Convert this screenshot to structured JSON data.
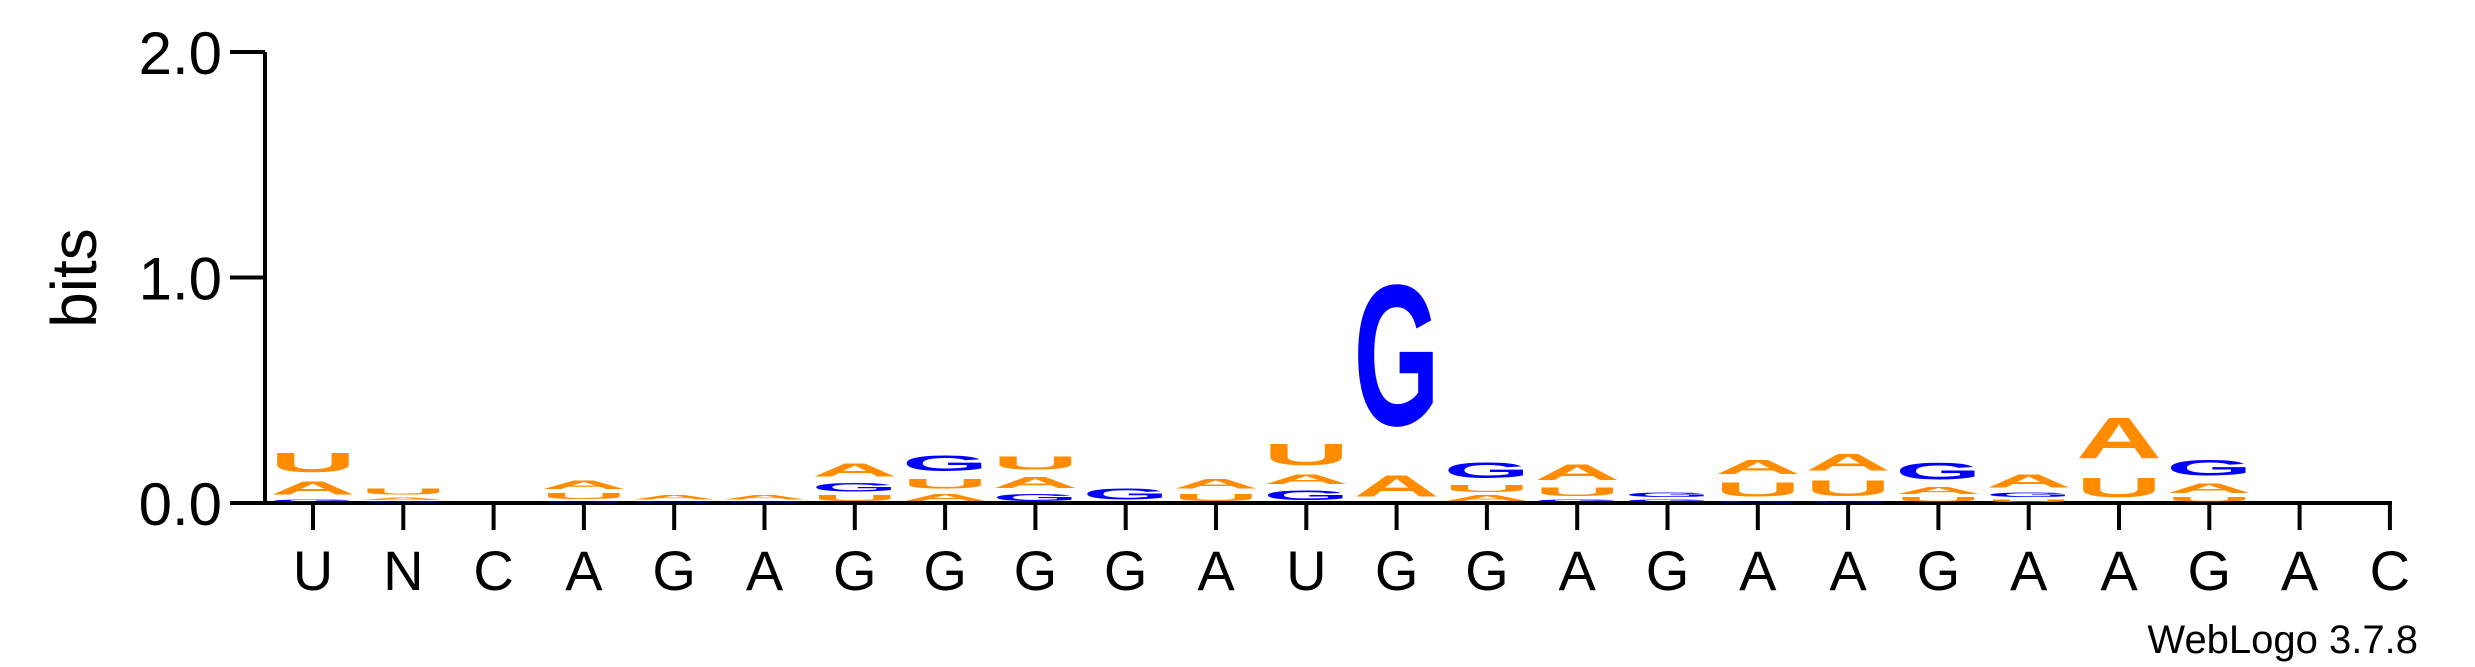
{
  "chart_data": {
    "type": "sequence-logo",
    "ylabel": "bits",
    "ylim": [
      0,
      2.0
    ],
    "yticks": [
      "0.0",
      "1.0",
      "2.0"
    ],
    "positions": [
      "U",
      "N",
      "C",
      "A",
      "G",
      "A",
      "G",
      "G",
      "G",
      "G",
      "A",
      "U",
      "G",
      "G",
      "A",
      "G",
      "A",
      "A",
      "G",
      "A",
      "A",
      "G",
      "A",
      "C"
    ],
    "colors": {
      "A": "#FF8C00",
      "U": "#FF8C00",
      "G": "#0000FF",
      "C": "#0000FF"
    },
    "stacks": [
      [
        {
          "letter": "G",
          "value": 0.02
        },
        {
          "letter": "A",
          "value": 0.09
        },
        {
          "letter": "U",
          "value": 0.14
        }
      ],
      [
        {
          "letter": "G",
          "value": 0.01
        },
        {
          "letter": "A",
          "value": 0.02
        },
        {
          "letter": "U",
          "value": 0.04
        }
      ],
      [],
      [
        {
          "letter": "G",
          "value": 0.01
        },
        {
          "letter": "U",
          "value": 0.04
        },
        {
          "letter": "A",
          "value": 0.06
        }
      ],
      [
        {
          "letter": "G",
          "value": 0.01
        },
        {
          "letter": "A",
          "value": 0.03
        }
      ],
      [
        {
          "letter": "G",
          "value": 0.01
        },
        {
          "letter": "A",
          "value": 0.03
        }
      ],
      [
        {
          "letter": "U",
          "value": 0.04
        },
        {
          "letter": "G",
          "value": 0.06
        },
        {
          "letter": "A",
          "value": 0.09
        }
      ],
      [
        {
          "letter": "A",
          "value": 0.05
        },
        {
          "letter": "U",
          "value": 0.07
        },
        {
          "letter": "G",
          "value": 0.11
        }
      ],
      [
        {
          "letter": "G",
          "value": 0.05
        },
        {
          "letter": "A",
          "value": 0.08
        },
        {
          "letter": "U",
          "value": 0.09
        }
      ],
      [
        {
          "letter": "G",
          "value": 0.08
        }
      ],
      [
        {
          "letter": "U",
          "value": 0.05
        },
        {
          "letter": "A",
          "value": 0.07
        }
      ],
      [
        {
          "letter": "G",
          "value": 0.07
        },
        {
          "letter": "A",
          "value": 0.07
        },
        {
          "letter": "U",
          "value": 0.15
        }
      ],
      [
        {
          "letter": "A",
          "value": 0.15
        },
        {
          "letter": "G",
          "value": 1.0
        }
      ],
      [
        {
          "letter": "A",
          "value": 0.04
        },
        {
          "letter": "U",
          "value": 0.05
        },
        {
          "letter": "G",
          "value": 0.11
        }
      ],
      [
        {
          "letter": "G",
          "value": 0.02
        },
        {
          "letter": "U",
          "value": 0.06
        },
        {
          "letter": "A",
          "value": 0.11
        }
      ],
      [
        {
          "letter": "G",
          "value": 0.02
        },
        {
          "letter": "G",
          "value": 0.03
        }
      ],
      [
        {
          "letter": "G",
          "value": 0.01
        },
        {
          "letter": "U",
          "value": 0.1
        },
        {
          "letter": "A",
          "value": 0.1
        }
      ],
      [
        {
          "letter": "G",
          "value": 0.01
        },
        {
          "letter": "U",
          "value": 0.11
        },
        {
          "letter": "A",
          "value": 0.12
        }
      ],
      [
        {
          "letter": "U",
          "value": 0.03
        },
        {
          "letter": "A",
          "value": 0.05
        },
        {
          "letter": "G",
          "value": 0.12
        }
      ],
      [
        {
          "letter": "U",
          "value": 0.02
        },
        {
          "letter": "G",
          "value": 0.03
        },
        {
          "letter": "A",
          "value": 0.09
        }
      ],
      [
        {
          "letter": "U",
          "value": 0.14
        },
        {
          "letter": "A",
          "value": 0.29
        }
      ],
      [
        {
          "letter": "U",
          "value": 0.03
        },
        {
          "letter": "A",
          "value": 0.07
        },
        {
          "letter": "G",
          "value": 0.11
        }
      ],
      [],
      []
    ]
  },
  "credit": "WebLogo 3.7.8"
}
